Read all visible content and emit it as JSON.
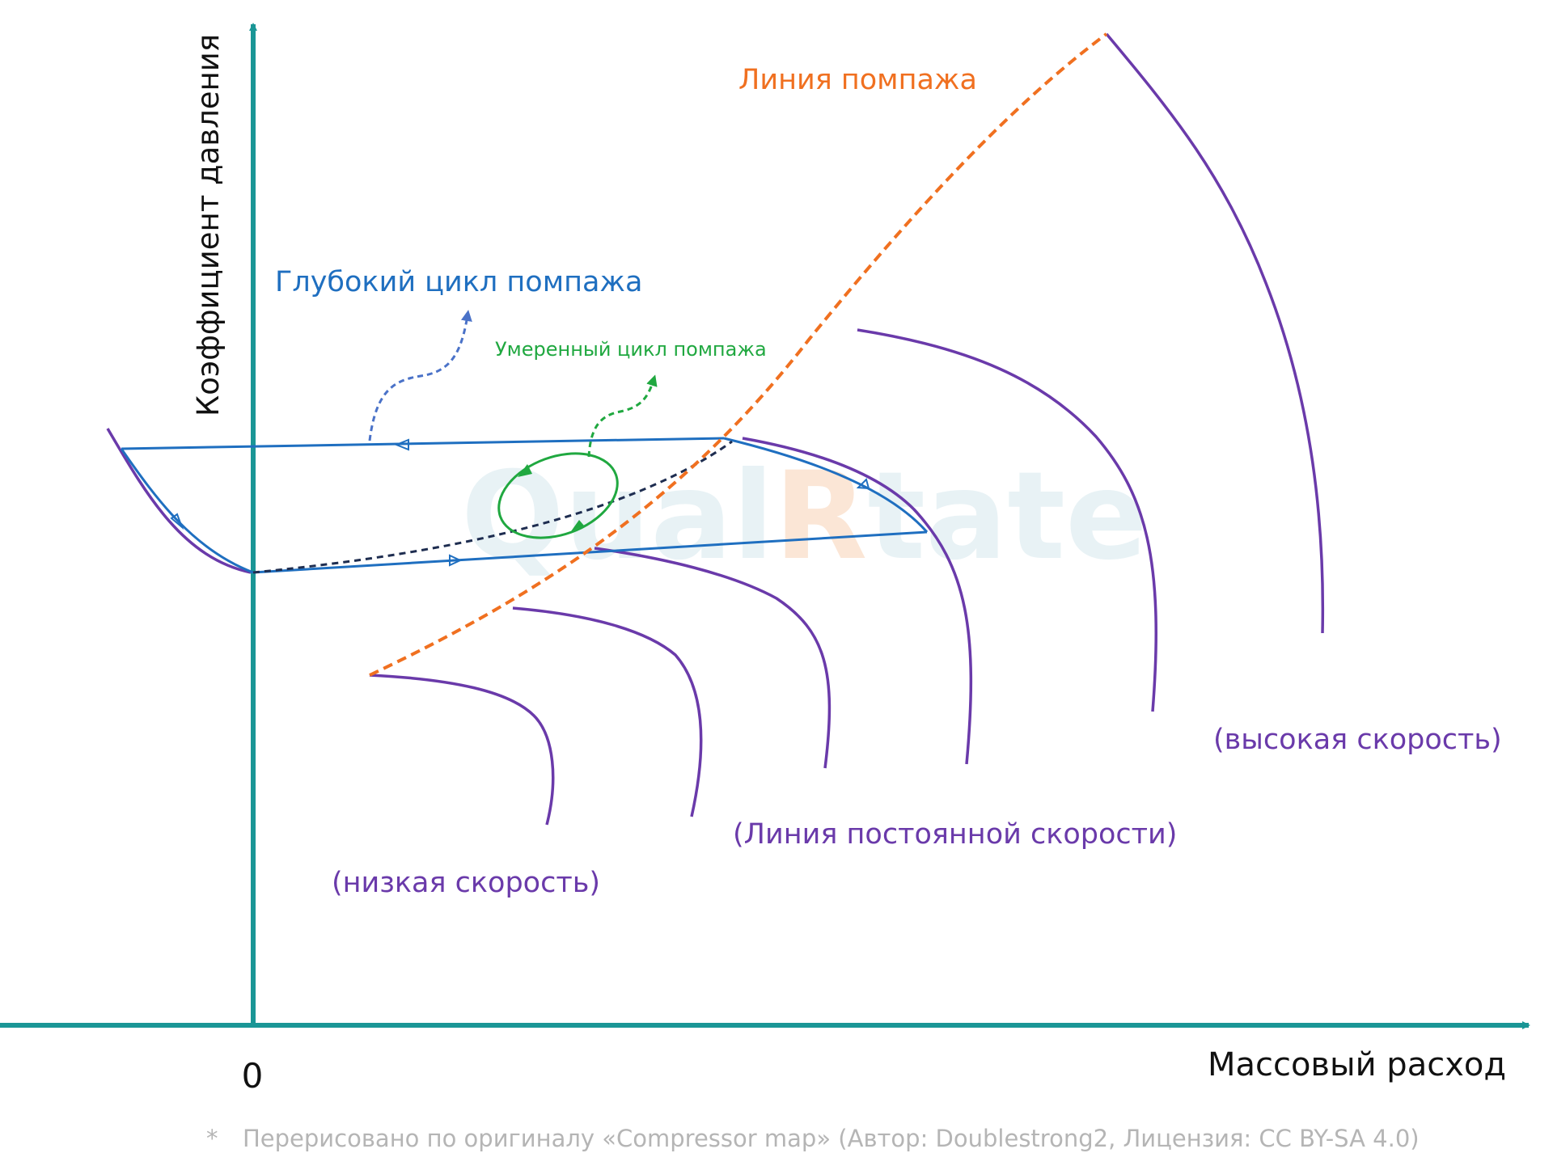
{
  "axes": {
    "y_label": "Коэффициент давления",
    "x_label": "Массовый расход",
    "origin_label": "0",
    "color": "#1a9696"
  },
  "labels": {
    "surge_line": "Линия помпажа",
    "deep_surge_cycle": "Глубокий цикл помпажа",
    "moderate_surge_cycle": "Умеренный цикл помпажа",
    "high_speed": "(высокая скорость)",
    "constant_speed_line": "(Линия постоянной скорости)",
    "low_speed": "(низкая скорость)"
  },
  "watermark": {
    "text_part1": "Qual",
    "text_part2": "R",
    "text_part3": "tate",
    "color": "#e8f2f5",
    "accent_color": "#fbe6d6"
  },
  "footnote": {
    "marker": "*",
    "text": "Перерисовано по оригиналу «Compressor map» (Автор: Doublestrong2, Лицензия: CC BY-SA 4.0)"
  },
  "colors": {
    "surge_line": "#f07020",
    "speed_lines": "#6a3aaa",
    "deep_cycle": "#1f6fc0",
    "moderate_cycle": "#20a840",
    "operating_line": "#1e2d50",
    "deep_cycle_pointer": "#4a72c8",
    "footnote": "#b5b5b5"
  }
}
